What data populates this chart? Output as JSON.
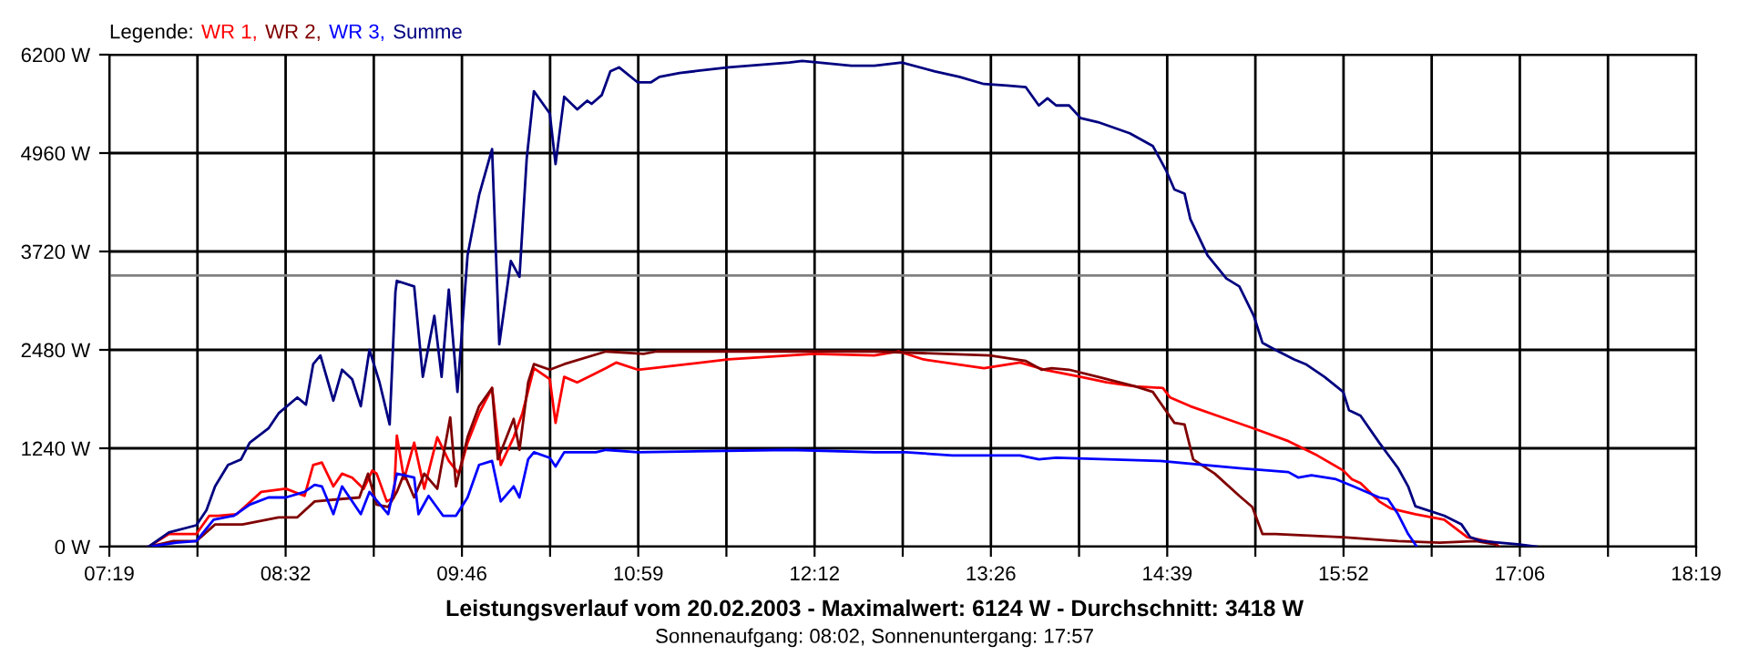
{
  "chart_data": {
    "type": "line",
    "title": "Leistungsverlauf vom 20.02.2003 - Maximalwert: 6124 W - Durchschnitt: 3418 W",
    "subtitle": "Sonnenaufgang: 08:02, Sonnenuntergang: 17:57",
    "legend_title": "Legende:",
    "legend": "top left",
    "grid": true,
    "line_style": "solid",
    "xlim": [
      7.3167,
      18.3167
    ],
    "xticks": [
      {
        "value": 7.3167,
        "label": "07:19"
      },
      {
        "value": 7.9278,
        "label": null
      },
      {
        "value": 8.5389,
        "label": "08:32"
      },
      {
        "value": 9.15,
        "label": null
      },
      {
        "value": 9.7611,
        "label": "09:46"
      },
      {
        "value": 10.3722,
        "label": null
      },
      {
        "value": 10.9833,
        "label": "10:59"
      },
      {
        "value": 11.5944,
        "label": null
      },
      {
        "value": 12.2056,
        "label": "12:12"
      },
      {
        "value": 12.8167,
        "label": null
      },
      {
        "value": 13.4278,
        "label": "13:26"
      },
      {
        "value": 14.0389,
        "label": null
      },
      {
        "value": 14.65,
        "label": "14:39"
      },
      {
        "value": 15.2611,
        "label": null
      },
      {
        "value": 15.8722,
        "label": "15:52"
      },
      {
        "value": 16.4833,
        "label": null
      },
      {
        "value": 17.0944,
        "label": "17:06"
      },
      {
        "value": 17.7056,
        "label": null
      },
      {
        "value": 18.3167,
        "label": "18:19"
      }
    ],
    "ylim": [
      0,
      6200
    ],
    "yticks": [
      {
        "value": 0,
        "label": "0 W"
      },
      {
        "value": 1240,
        "label": "1240 W"
      },
      {
        "value": 2480,
        "label": "2480 W"
      },
      {
        "value": 3720,
        "label": "3720 W"
      },
      {
        "value": 4960,
        "label": "4960 W"
      },
      {
        "value": 6200,
        "label": "6200 W"
      }
    ],
    "ref_lines": [
      {
        "axis": "y",
        "value": 3418,
        "color": "#808080"
      }
    ],
    "series": [
      {
        "name": "WR 1,",
        "color": "#ff0000",
        "x": [
          7.59,
          7.73,
          7.92,
          8.01,
          8.07,
          8.2,
          8.37,
          8.54,
          8.67,
          8.73,
          8.79,
          8.87,
          8.93,
          9.0,
          9.08,
          9.14,
          9.17,
          9.24,
          9.29,
          9.31,
          9.36,
          9.43,
          9.5,
          9.59,
          9.67,
          9.74,
          9.8,
          9.88,
          9.97,
          10.03,
          10.12,
          10.18,
          10.26,
          10.37,
          10.41,
          10.47,
          10.56,
          10.64,
          10.76,
          10.83,
          10.98,
          11.08,
          11.61,
          12.2,
          12.62,
          12.79,
          12.96,
          13.38,
          13.63,
          13.8,
          14.05,
          14.23,
          14.43,
          14.62,
          14.67,
          14.81,
          15.06,
          15.25,
          15.49,
          15.69,
          15.87,
          15.93,
          15.99,
          16.12,
          16.2,
          16.37,
          16.57,
          16.73,
          16.92,
          16.95
        ],
        "values": [
          0,
          160,
          160,
          390,
          390,
          410,
          690,
          730,
          640,
          1030,
          1060,
          760,
          920,
          870,
          730,
          960,
          920,
          570,
          620,
          1400,
          850,
          1310,
          730,
          1380,
          1080,
          920,
          1310,
          1680,
          2000,
          1030,
          1380,
          1680,
          2250,
          2110,
          1560,
          2140,
          2070,
          2140,
          2250,
          2320,
          2230,
          2250,
          2360,
          2430,
          2410,
          2460,
          2360,
          2250,
          2320,
          2230,
          2140,
          2070,
          2020,
          2000,
          1880,
          1770,
          1610,
          1490,
          1330,
          1150,
          960,
          850,
          800,
          570,
          480,
          410,
          340,
          120,
          50,
          0
        ]
      },
      {
        "name": "WR 2,",
        "color": "#800000",
        "x": [
          7.59,
          7.76,
          7.92,
          8.05,
          8.24,
          8.49,
          8.62,
          8.74,
          8.92,
          9.05,
          9.11,
          9.17,
          9.25,
          9.31,
          9.36,
          9.43,
          9.5,
          9.59,
          9.68,
          9.72,
          9.8,
          9.88,
          9.97,
          10.01,
          10.12,
          10.16,
          10.22,
          10.26,
          10.37,
          10.47,
          10.76,
          11.02,
          11.11,
          12.62,
          13.42,
          13.67,
          13.78,
          13.85,
          13.97,
          14.17,
          14.43,
          14.55,
          14.7,
          14.77,
          14.83,
          14.98,
          15.15,
          15.24,
          15.31,
          15.4,
          15.87,
          16.25,
          16.54,
          16.79,
          16.92,
          16.95
        ],
        "values": [
          0,
          70,
          70,
          280,
          280,
          370,
          370,
          570,
          600,
          620,
          920,
          530,
          500,
          690,
          920,
          620,
          920,
          730,
          1630,
          760,
          1380,
          1770,
          2000,
          1100,
          1610,
          1220,
          2070,
          2300,
          2230,
          2300,
          2460,
          2430,
          2460,
          2460,
          2410,
          2340,
          2230,
          2250,
          2230,
          2140,
          2020,
          1950,
          1560,
          1540,
          1100,
          920,
          640,
          500,
          160,
          160,
          120,
          70,
          50,
          70,
          30,
          0
        ]
      },
      {
        "name": "WR 3,",
        "color": "#0000ff",
        "x": [
          7.59,
          7.78,
          7.92,
          8.04,
          8.18,
          8.29,
          8.42,
          8.54,
          8.67,
          8.74,
          8.79,
          8.87,
          8.93,
          9.06,
          9.12,
          9.25,
          9.31,
          9.43,
          9.46,
          9.53,
          9.63,
          9.72,
          9.8,
          9.88,
          9.97,
          10.03,
          10.12,
          10.16,
          10.22,
          10.26,
          10.37,
          10.41,
          10.47,
          10.69,
          10.76,
          10.98,
          12.03,
          12.62,
          12.84,
          13.16,
          13.63,
          13.76,
          13.88,
          14.6,
          15.15,
          15.49,
          15.56,
          15.65,
          15.82,
          15.94,
          16.12,
          16.18,
          16.25,
          16.32,
          16.38
        ],
        "values": [
          0,
          50,
          70,
          340,
          390,
          530,
          620,
          620,
          690,
          780,
          760,
          410,
          760,
          410,
          690,
          410,
          920,
          870,
          410,
          640,
          390,
          390,
          620,
          1030,
          1080,
          570,
          760,
          620,
          1100,
          1190,
          1120,
          1010,
          1190,
          1190,
          1220,
          1190,
          1220,
          1190,
          1190,
          1150,
          1150,
          1100,
          1120,
          1080,
          990,
          940,
          870,
          900,
          850,
          760,
          620,
          600,
          410,
          160,
          0
        ]
      },
      {
        "name": "Summe",
        "color": "#000080",
        "x": [
          7.59,
          7.73,
          7.92,
          7.99,
          8.05,
          8.14,
          8.23,
          8.29,
          8.42,
          8.49,
          8.62,
          8.68,
          8.73,
          8.78,
          8.87,
          8.93,
          9.0,
          9.06,
          9.12,
          9.19,
          9.26,
          9.3,
          9.31,
          9.43,
          9.49,
          9.57,
          9.62,
          9.67,
          9.73,
          9.8,
          9.88,
          9.97,
          10.02,
          10.1,
          10.16,
          10.21,
          10.26,
          10.37,
          10.41,
          10.47,
          10.56,
          10.63,
          10.66,
          10.73,
          10.79,
          10.85,
          10.98,
          11.07,
          11.13,
          11.27,
          11.61,
          12.03,
          12.12,
          12.46,
          12.62,
          12.81,
          13.04,
          13.21,
          13.38,
          13.54,
          13.67,
          13.76,
          13.82,
          13.88,
          13.97,
          14.05,
          14.17,
          14.39,
          14.55,
          14.64,
          14.7,
          14.77,
          14.81,
          14.93,
          15.06,
          15.15,
          15.25,
          15.31,
          15.4,
          15.53,
          15.61,
          15.74,
          15.87,
          15.91,
          15.99,
          16.12,
          16.25,
          16.32,
          16.37,
          16.57,
          16.69,
          16.75,
          16.83,
          17.08,
          17.21
        ],
        "values": [
          0,
          180,
          270,
          460,
          760,
          1030,
          1100,
          1310,
          1490,
          1680,
          1880,
          1790,
          2300,
          2410,
          1840,
          2230,
          2110,
          1770,
          2480,
          2070,
          1540,
          3210,
          3350,
          3280,
          2140,
          2910,
          2140,
          3240,
          1950,
          3670,
          4430,
          5010,
          2550,
          3600,
          3400,
          4890,
          5740,
          5460,
          4820,
          5670,
          5510,
          5620,
          5580,
          5690,
          5990,
          6040,
          5850,
          5850,
          5920,
          5970,
          6040,
          6100,
          6120,
          6060,
          6060,
          6100,
          5990,
          5920,
          5830,
          5810,
          5790,
          5560,
          5650,
          5560,
          5560,
          5400,
          5350,
          5210,
          5050,
          4750,
          4500,
          4450,
          4130,
          3670,
          3380,
          3280,
          2910,
          2570,
          2480,
          2360,
          2300,
          2140,
          1950,
          1720,
          1650,
          1310,
          990,
          760,
          510,
          390,
          280,
          120,
          70,
          30,
          0
        ]
      }
    ]
  }
}
